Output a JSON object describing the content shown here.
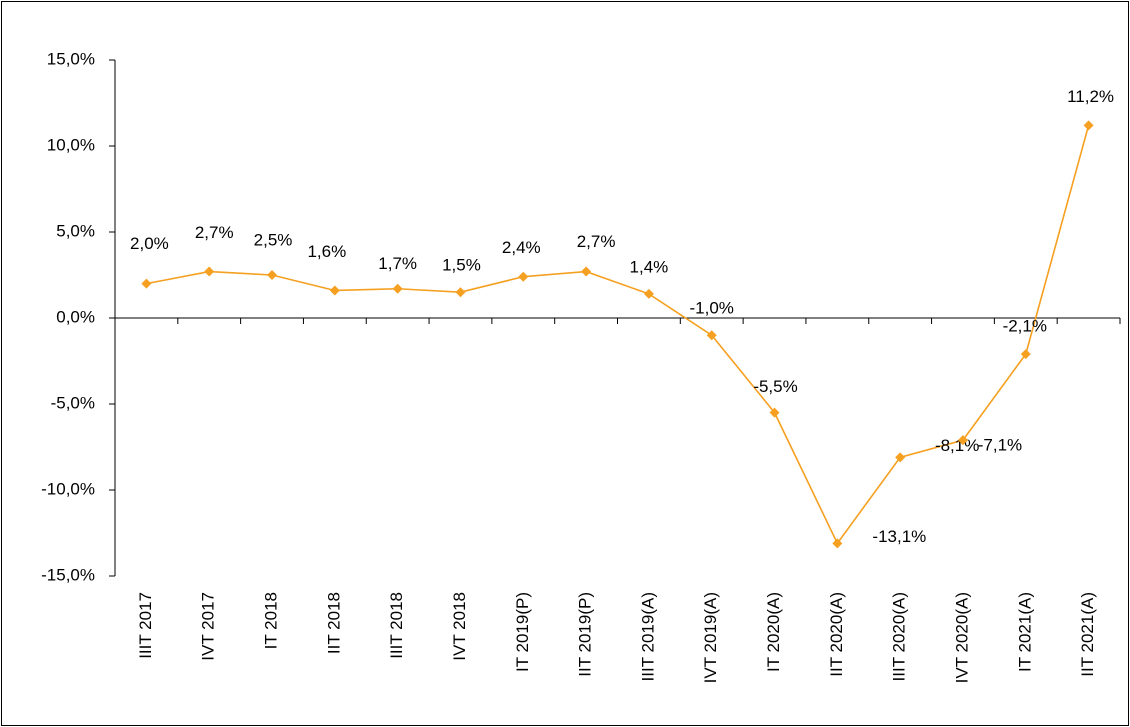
{
  "chart_data": {
    "type": "line",
    "categories": [
      "IIIT 2017",
      "IVT 2017",
      "IT 2018",
      "IIT 2018",
      "IIIT 2018",
      "IVT 2018",
      "IT 2019(P)",
      "IIT 2019(P)",
      "IIIT 2019(A)",
      "IVT 2019(A)",
      "IT 2020(A)",
      "IIT 2020(A)",
      "IIIT 2020(A)",
      "IVT 2020(A)",
      "IT 2021(A)",
      "IIT 2021(A)"
    ],
    "series": [
      {
        "color": "#f5a020",
        "values": [
          2.0,
          2.7,
          2.5,
          1.6,
          1.7,
          1.5,
          2.4,
          2.7,
          1.4,
          -1.0,
          -5.5,
          -13.1,
          -8.1,
          -7.1,
          -2.1,
          11.2
        ],
        "value_labels": [
          "2,0%",
          "2,7%",
          "2,5%",
          "1,6%",
          "1,7%",
          "1,5%",
          "2,4%",
          "2,7%",
          "1,4%",
          "-1,0%",
          "-5,5%",
          "-13,1%",
          "-8,1%",
          "-7,1%",
          "-2,1%",
          "11,2%"
        ]
      }
    ],
    "ylim": [
      -15,
      15
    ],
    "yticks": [
      {
        "value": -15,
        "label": "-15,0%"
      },
      {
        "value": -10,
        "label": "-10,0%"
      },
      {
        "value": -5,
        "label": "-5,0%"
      },
      {
        "value": 0,
        "label": "0,0%"
      },
      {
        "value": 5,
        "label": "5,0%"
      },
      {
        "value": 10,
        "label": "10,0%"
      },
      {
        "value": 15,
        "label": "15,0%"
      }
    ]
  }
}
